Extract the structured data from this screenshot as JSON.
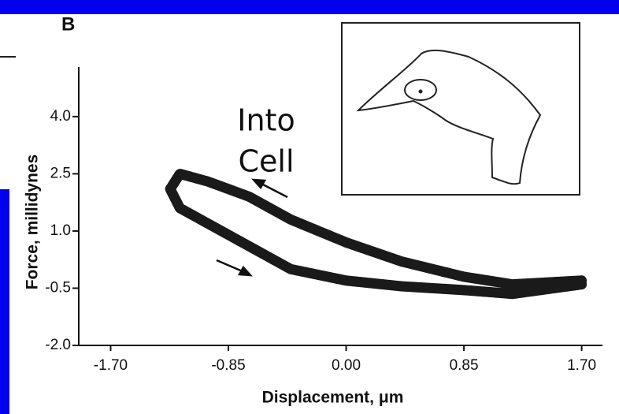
{
  "chart_data": {
    "type": "line",
    "panel_label": "B",
    "annotation": [
      "Into",
      "Cell"
    ],
    "xlabel": "Displacement, μm",
    "ylabel": "Force, millidynes",
    "xlim": [
      -1.93,
      1.85
    ],
    "ylim": [
      -2.0,
      5.3
    ],
    "xticks": [
      {
        "value": -1.7,
        "label": "-1.70"
      },
      {
        "value": -0.85,
        "label": "-0.85"
      },
      {
        "value": 0,
        "label": "0.00"
      },
      {
        "value": 0.85,
        "label": "0.85"
      },
      {
        "value": 1.7,
        "label": "1.70"
      }
    ],
    "yticks": [
      {
        "value": -2.0,
        "label": "-2.0"
      },
      -0.5,
      {
        "value": 1.0,
        "label": "1.0"
      },
      2.5,
      {
        "value": 4.0,
        "label": "4.0"
      }
    ],
    "series": [
      {
        "color": "#1a1a1a",
        "x": [
          1.7,
          1.2,
          0.85,
          0.4,
          0.0,
          -0.4,
          -0.7,
          -1.0,
          -1.2,
          -1.27,
          -1.2,
          -1.0,
          -0.7,
          -0.4,
          0.0,
          0.4,
          0.85,
          1.2,
          1.7
        ],
        "values": [
          -0.3,
          -0.4,
          -0.2,
          0.2,
          0.7,
          1.3,
          1.9,
          2.3,
          2.5,
          2.1,
          1.6,
          1.2,
          0.6,
          0.0,
          -0.3,
          -0.45,
          -0.55,
          -0.65,
          -0.4
        ]
      }
    ]
  }
}
